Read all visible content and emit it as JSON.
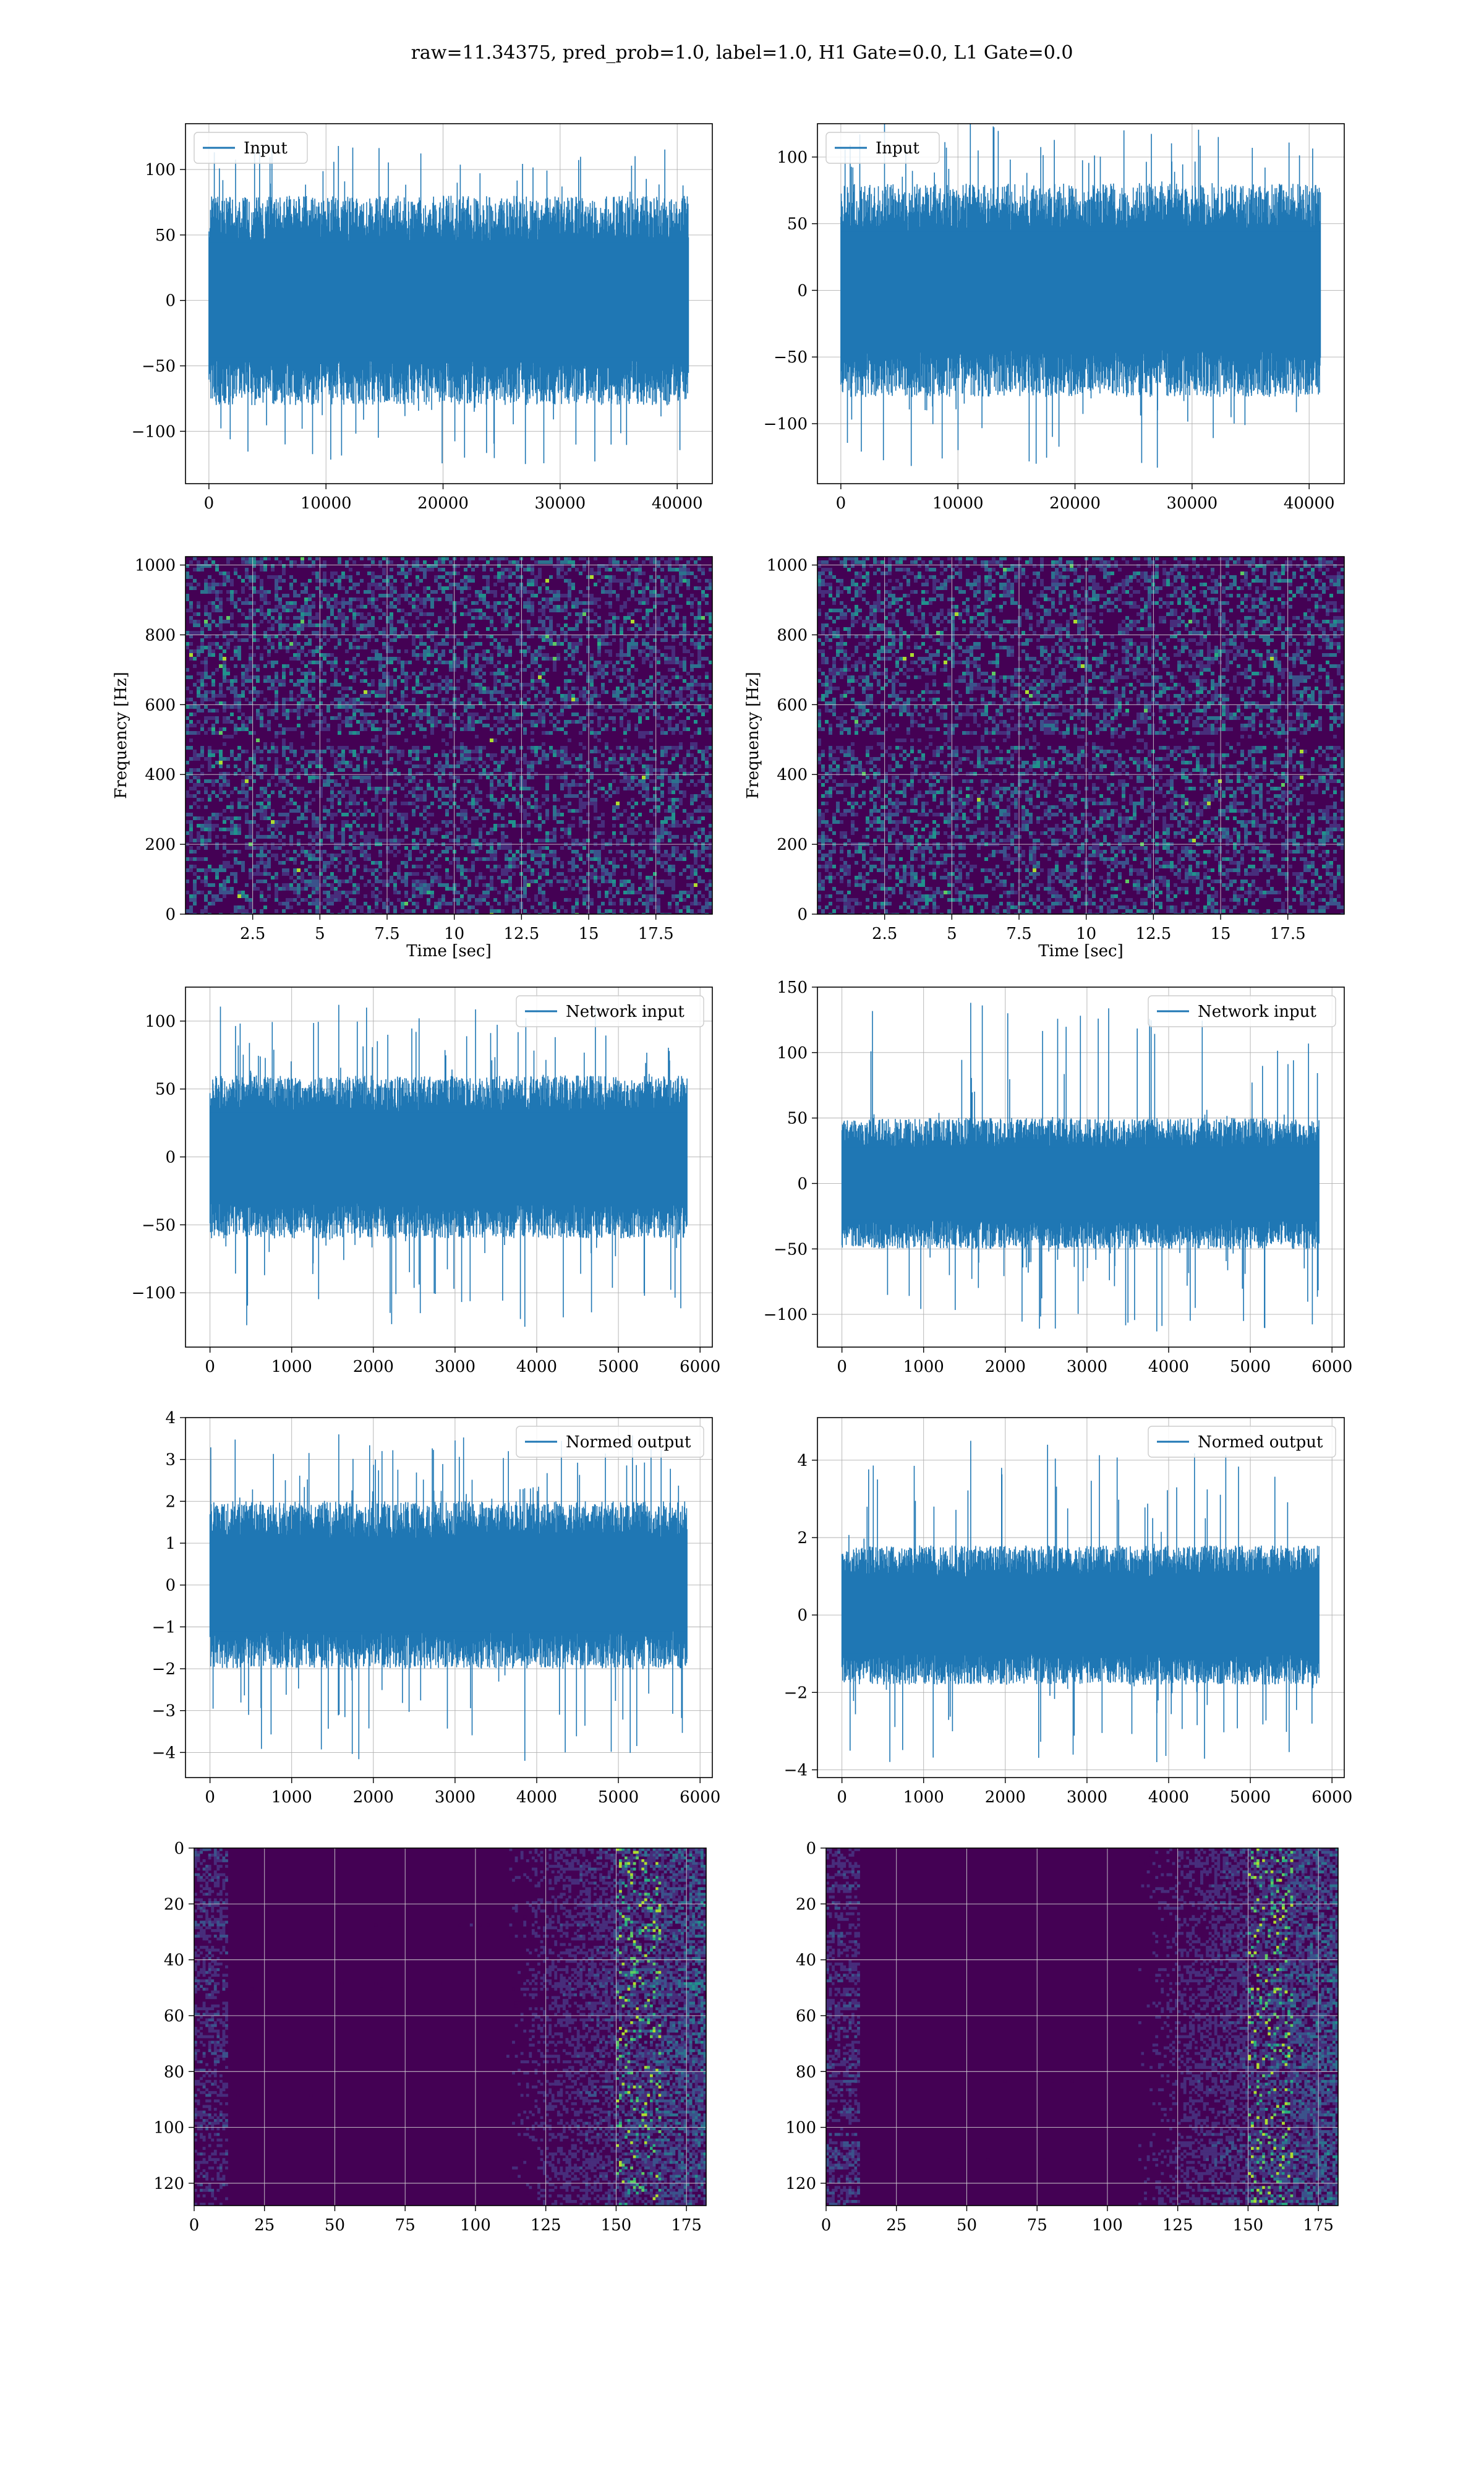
{
  "title": "raw=11.34375, pred_prob=1.0, label=1.0, H1 Gate=0.0, L1 Gate=0.0",
  "colors": {
    "line": "#1f77b4",
    "viridis_dark": "#440154",
    "grid": "#b0b0b0"
  },
  "chart_data": [
    {
      "id": "h1-input",
      "type": "line",
      "column": "left",
      "row": 1,
      "title": "",
      "xlabel": "",
      "ylabel": "",
      "legend": {
        "label": "Input",
        "placement": "top-left"
      },
      "xlim": [
        -2000,
        43000
      ],
      "ylim": [
        -140,
        135
      ],
      "xticks": [
        0,
        10000,
        20000,
        30000,
        40000
      ],
      "yticks": [
        -100,
        -50,
        0,
        50,
        100
      ],
      "series": [
        {
          "n_samples": 40960,
          "x_range": [
            0,
            40960
          ],
          "y_range": [
            -125,
            118
          ],
          "envelope": [
            -80,
            80
          ]
        }
      ]
    },
    {
      "id": "l1-input",
      "type": "line",
      "column": "right",
      "row": 1,
      "title": "",
      "xlabel": "",
      "ylabel": "",
      "legend": {
        "label": "Input",
        "placement": "top-left"
      },
      "xlim": [
        -2000,
        43000
      ],
      "ylim": [
        -145,
        125
      ],
      "xticks": [
        0,
        10000,
        20000,
        30000,
        40000
      ],
      "yticks": [
        -100,
        -50,
        0,
        50,
        100
      ],
      "series": [
        {
          "n_samples": 40960,
          "x_range": [
            0,
            40960
          ],
          "y_range": [
            -133,
            126
          ],
          "envelope": [
            -80,
            80
          ]
        }
      ]
    },
    {
      "id": "h1-spectrogram",
      "type": "heatmap",
      "column": "left",
      "row": 2,
      "title": "",
      "xlabel": "Time [sec]",
      "ylabel": "Frequency [Hz]",
      "xlim": [
        0,
        19.6
      ],
      "ylim": [
        0,
        1024
      ],
      "xticks": [
        2.5,
        5.0,
        7.5,
        10.0,
        12.5,
        15.0,
        17.5
      ],
      "yticks": [
        0,
        200,
        400,
        600,
        800,
        1000
      ],
      "colormap": "viridis"
    },
    {
      "id": "l1-spectrogram",
      "type": "heatmap",
      "column": "right",
      "row": 2,
      "title": "",
      "xlabel": "Time [sec]",
      "ylabel": "Frequency [Hz]",
      "xlim": [
        0,
        19.6
      ],
      "ylim": [
        0,
        1024
      ],
      "xticks": [
        2.5,
        5.0,
        7.5,
        10.0,
        12.5,
        15.0,
        17.5
      ],
      "yticks": [
        0,
        200,
        400,
        600,
        800,
        1000
      ],
      "colormap": "viridis"
    },
    {
      "id": "h1-network-input",
      "type": "line",
      "column": "left",
      "row": 3,
      "title": "",
      "xlabel": "",
      "ylabel": "",
      "legend": {
        "label": "Network input",
        "placement": "top-right"
      },
      "xlim": [
        -300,
        6150
      ],
      "ylim": [
        -140,
        125
      ],
      "xticks": [
        0,
        1000,
        2000,
        3000,
        4000,
        5000,
        6000
      ],
      "yticks": [
        -100,
        -50,
        0,
        50,
        100
      ],
      "series": [
        {
          "n_samples": 5840,
          "x_range": [
            0,
            5840
          ],
          "y_range": [
            -125,
            112
          ],
          "envelope": [
            -60,
            60
          ]
        }
      ]
    },
    {
      "id": "l1-network-input",
      "type": "line",
      "column": "right",
      "row": 3,
      "title": "",
      "xlabel": "",
      "ylabel": "",
      "legend": {
        "label": "Network input",
        "placement": "top-right"
      },
      "xlim": [
        -300,
        6150
      ],
      "ylim": [
        -125,
        150
      ],
      "xticks": [
        0,
        1000,
        2000,
        3000,
        4000,
        5000,
        6000
      ],
      "yticks": [
        -100,
        -50,
        0,
        50,
        100,
        150
      ],
      "series": [
        {
          "n_samples": 5840,
          "x_range": [
            0,
            5840
          ],
          "y_range": [
            -113,
            138
          ],
          "envelope": [
            -50,
            50
          ]
        }
      ]
    },
    {
      "id": "h1-normed-output",
      "type": "line",
      "column": "left",
      "row": 4,
      "title": "",
      "xlabel": "",
      "ylabel": "",
      "legend": {
        "label": "Normed output",
        "placement": "top-right"
      },
      "xlim": [
        -300,
        6150
      ],
      "ylim": [
        -4.6,
        4.0
      ],
      "xticks": [
        0,
        1000,
        2000,
        3000,
        4000,
        5000,
        6000
      ],
      "yticks": [
        -4,
        -3,
        -2,
        -1,
        0,
        1,
        2,
        3,
        4
      ],
      "series": [
        {
          "n_samples": 5840,
          "x_range": [
            0,
            5840
          ],
          "y_range": [
            -4.2,
            3.6
          ],
          "envelope": [
            -2,
            2
          ]
        }
      ]
    },
    {
      "id": "l1-normed-output",
      "type": "line",
      "column": "right",
      "row": 4,
      "title": "",
      "xlabel": "",
      "ylabel": "",
      "legend": {
        "label": "Normed output",
        "placement": "top-right"
      },
      "xlim": [
        -300,
        6150
      ],
      "ylim": [
        -4.2,
        5.1
      ],
      "xticks": [
        0,
        1000,
        2000,
        3000,
        4000,
        5000,
        6000
      ],
      "yticks": [
        -4,
        -2,
        0,
        2,
        4
      ],
      "series": [
        {
          "n_samples": 5840,
          "x_range": [
            0,
            5840
          ],
          "y_range": [
            -3.8,
            4.5
          ],
          "envelope": [
            -1.8,
            1.8
          ]
        }
      ]
    },
    {
      "id": "h1-activations",
      "type": "heatmap",
      "column": "left",
      "row": 5,
      "title": "",
      "xlabel": "",
      "ylabel": "",
      "xlim": [
        0,
        182
      ],
      "ylim": [
        128,
        0
      ],
      "xticks": [
        0,
        25,
        50,
        75,
        100,
        125,
        150,
        175
      ],
      "yticks": [
        0,
        20,
        40,
        60,
        80,
        100,
        120
      ],
      "colormap": "viridis"
    },
    {
      "id": "l1-activations",
      "type": "heatmap",
      "column": "right",
      "row": 5,
      "title": "",
      "xlabel": "",
      "ylabel": "",
      "xlim": [
        0,
        182
      ],
      "ylim": [
        128,
        0
      ],
      "xticks": [
        0,
        25,
        50,
        75,
        100,
        125,
        150,
        175
      ],
      "yticks": [
        0,
        20,
        40,
        60,
        80,
        100,
        120
      ],
      "colormap": "viridis"
    }
  ]
}
